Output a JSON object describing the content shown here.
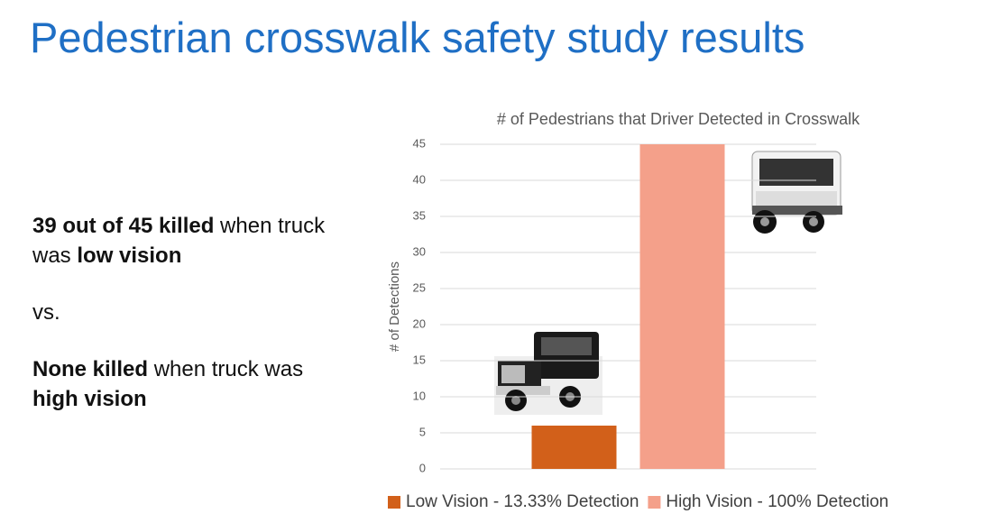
{
  "header": {
    "title": "Pedestrian crosswalk safety study results"
  },
  "text_blocks": [
    {
      "runs": [
        {
          "text": "39 out of 45 killed",
          "bold": true
        },
        {
          "text": " when truck was ",
          "bold": false
        },
        {
          "text": "low vision",
          "bold": true
        }
      ]
    },
    {
      "runs": [
        {
          "text": "vs.",
          "bold": false
        }
      ]
    },
    {
      "runs": [
        {
          "text": "None killed",
          "bold": true
        },
        {
          "text": " when truck was ",
          "bold": false
        },
        {
          "text": "high vision",
          "bold": true
        }
      ]
    }
  ],
  "chart_data": {
    "type": "bar",
    "title": "# of Pedestrians that Driver Detected in Crosswalk",
    "y_label": "# of Detections",
    "categories": [
      null
    ],
    "series": [
      {
        "name": "Low Vision - 13.33% Detection",
        "color": "#d2601a",
        "values": [
          6
        ]
      },
      {
        "name": "High Vision - 100% Detection",
        "color": "#f4a08a",
        "values": [
          45
        ]
      }
    ],
    "ylim": [
      0,
      45
    ],
    "yticks": [
      0,
      5,
      10,
      15,
      20,
      25,
      30,
      35,
      40,
      45
    ],
    "grid": true,
    "legend": "bottom"
  }
}
